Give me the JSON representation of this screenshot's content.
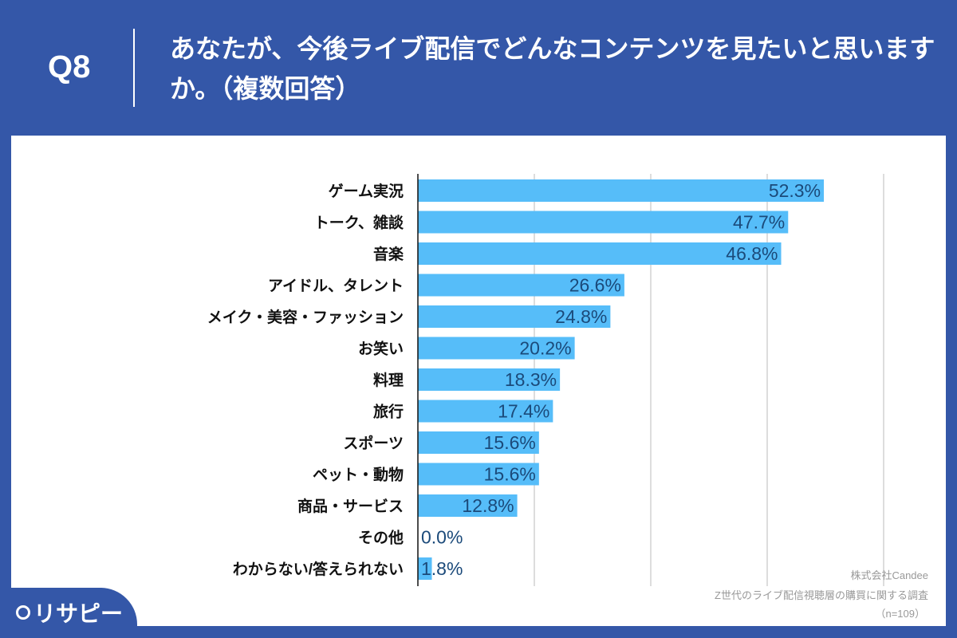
{
  "header": {
    "question_number": "Q8",
    "question": "あなたが、今後ライブ配信でどんなコンテンツを見たいと思いますか。（複数回答）"
  },
  "chart_data": {
    "type": "bar",
    "orientation": "horizontal",
    "categories": [
      "ゲーム実況",
      "トーク、雑談",
      "音楽",
      "アイドル、タレント",
      "メイク・美容・ファッション",
      "お笑い",
      "料理",
      "旅行",
      "スポーツ",
      "ペット・動物",
      "商品・サービス",
      "その他",
      "わからない/答えられない"
    ],
    "values": [
      52.3,
      47.7,
      46.8,
      26.6,
      24.8,
      20.2,
      18.3,
      17.4,
      15.6,
      15.6,
      12.8,
      0.0,
      1.8
    ],
    "data_labels": [
      "52.3%",
      "47.7%",
      "46.8%",
      "26.6%",
      "24.8%",
      "20.2%",
      "18.3%",
      "17.4%",
      "15.6%",
      "15.6%",
      "12.8%",
      "0.0%",
      "1.8%"
    ],
    "unit": "%",
    "xlim": [
      0,
      60
    ],
    "grid": true,
    "bar_color": "#56bdf9",
    "label_color": "#1b4a7a"
  },
  "source": {
    "company": "株式会社Candee",
    "survey": "Z世代のライブ配信視聴層の購買に関する調査",
    "n": "（n=109）"
  },
  "logo": {
    "text": "リサピー"
  },
  "colors": {
    "background": "#3457a8",
    "panel": "#ffffff"
  }
}
